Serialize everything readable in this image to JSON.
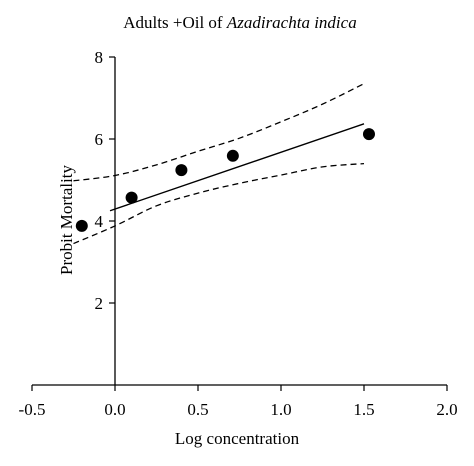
{
  "chart_data": {
    "type": "scatter",
    "title_prefix": "Adults +Oil of ",
    "title_italic": "Azadirachta indica",
    "xlabel": "Log concentration",
    "ylabel": "Probit Mortality",
    "xlim": [
      -0.5,
      2.0
    ],
    "ylim": [
      0,
      8
    ],
    "xticks": [
      -0.5,
      0.0,
      0.5,
      1.0,
      1.5,
      2.0
    ],
    "xtick_labels": [
      "-0.5",
      "0.0",
      "0.5",
      "1.0",
      "1.5",
      "2.0"
    ],
    "yticks": [
      2,
      4,
      6,
      8
    ],
    "ytick_labels": [
      "2",
      "4",
      "6",
      "8"
    ],
    "grid": false,
    "points": [
      {
        "x": -0.2,
        "y": 3.88
      },
      {
        "x": 0.1,
        "y": 4.57
      },
      {
        "x": 0.4,
        "y": 5.24
      },
      {
        "x": 0.71,
        "y": 5.59
      },
      {
        "x": 1.53,
        "y": 6.12
      }
    ],
    "fit_line": {
      "x": [
        -0.03,
        1.5
      ],
      "y": [
        4.25,
        6.37
      ]
    },
    "upper_ci": {
      "x": [
        -0.25,
        0.0,
        0.25,
        0.5,
        0.75,
        1.0,
        1.25,
        1.5
      ],
      "y": [
        4.98,
        5.11,
        5.37,
        5.7,
        6.02,
        6.42,
        6.85,
        7.35
      ]
    },
    "lower_ci": {
      "x": [
        -0.25,
        0.0,
        0.25,
        0.5,
        0.75,
        1.0,
        1.25,
        1.5
      ],
      "y": [
        3.45,
        3.88,
        4.37,
        4.68,
        4.92,
        5.12,
        5.32,
        5.4
      ]
    }
  }
}
